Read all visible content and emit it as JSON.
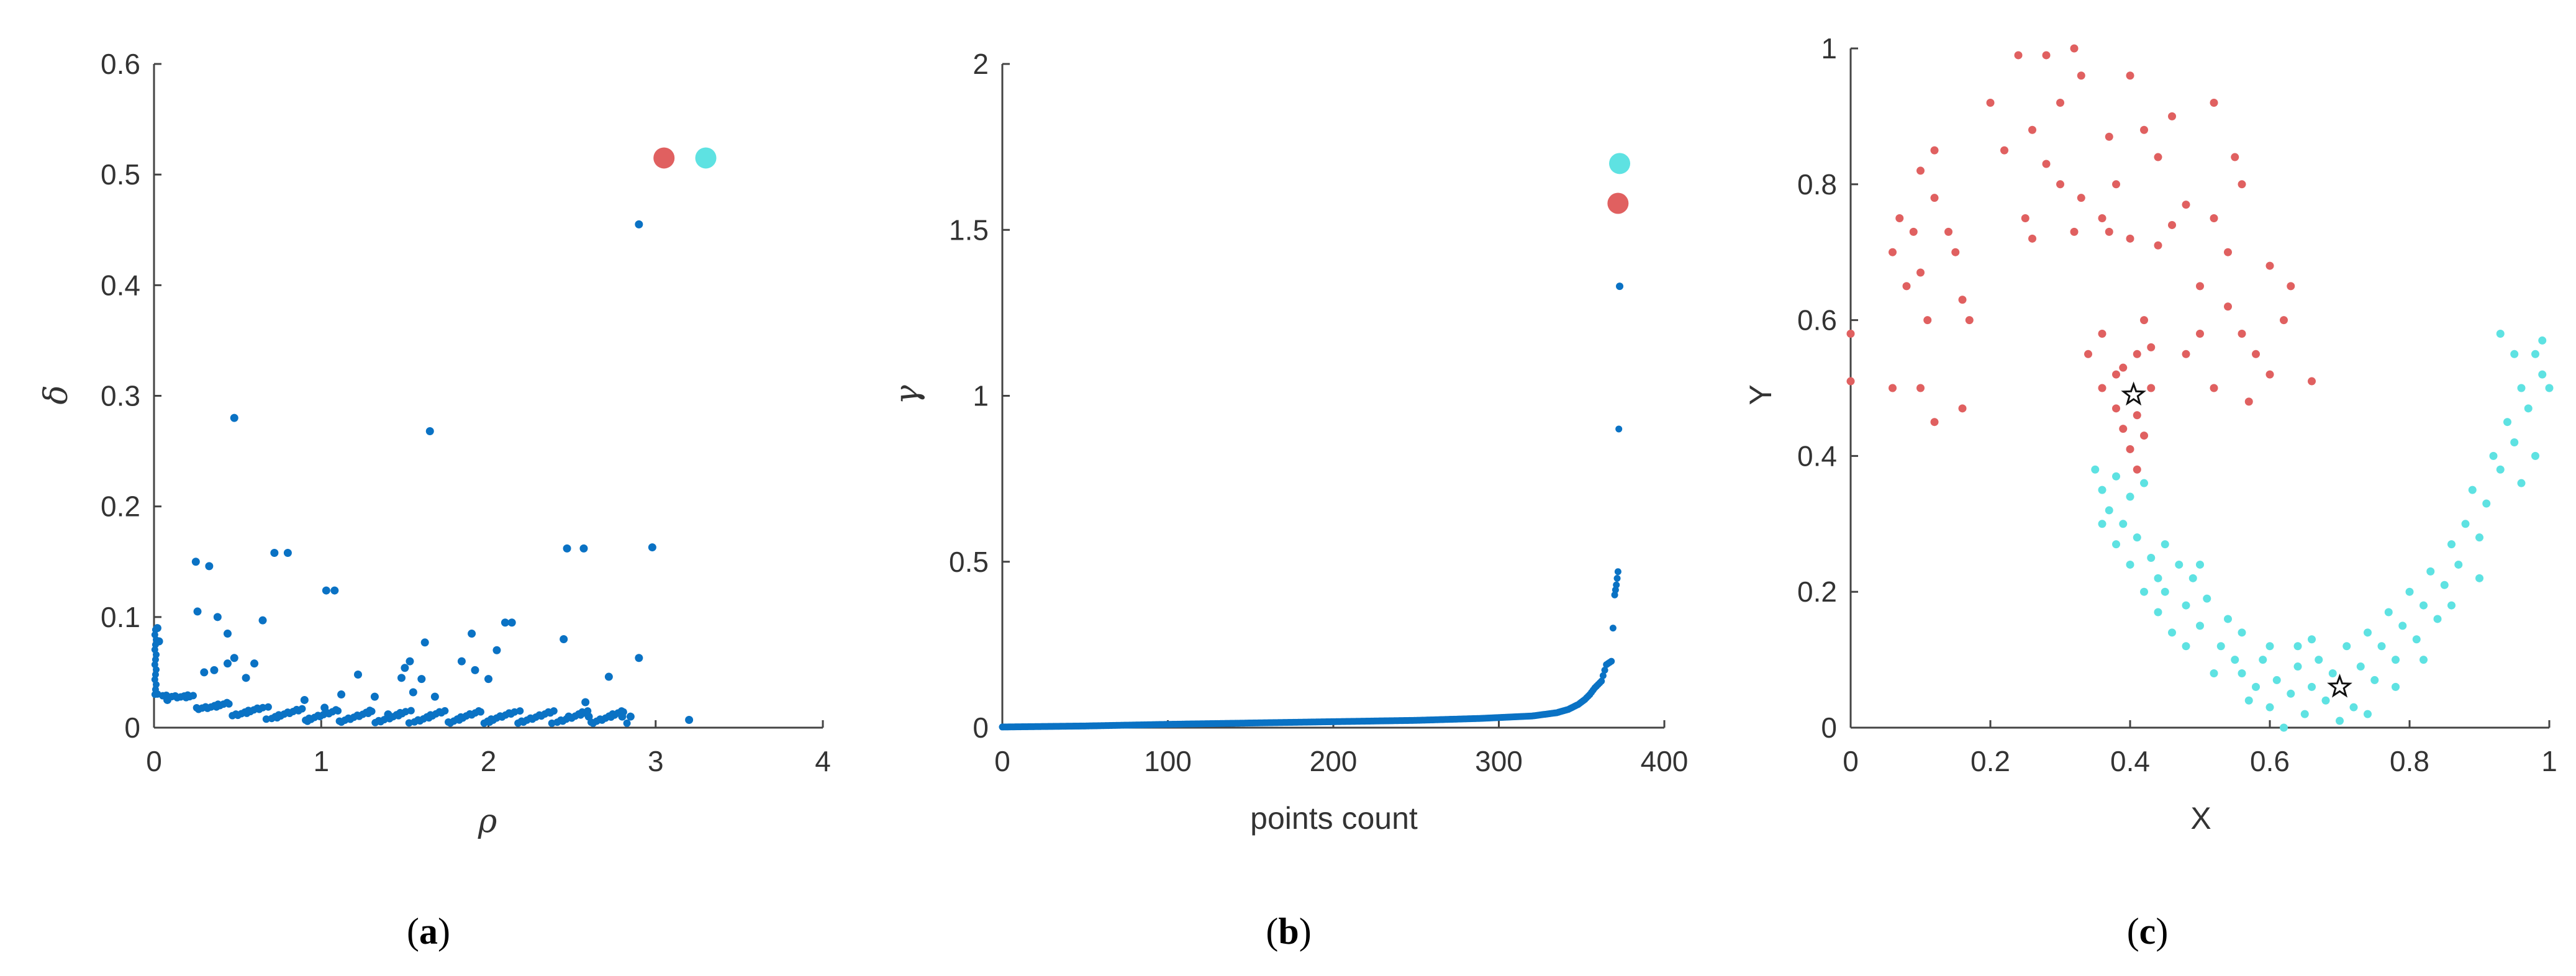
{
  "colors": {
    "blue": "#0a72c4",
    "red": "#e06060",
    "cyan": "#5ee2e2",
    "axis": "#444444"
  },
  "chart_data": [
    {
      "type": "scatter",
      "caption_open": "(",
      "caption_letter": "a",
      "caption_close": ")",
      "xlabel": "ρ",
      "ylabel": "δ",
      "xlim": [
        0,
        4
      ],
      "ylim": [
        0,
        0.6
      ],
      "xticks": [
        "0",
        "1",
        "2",
        "3",
        "4"
      ],
      "yticks": [
        "0",
        "0.1",
        "0.2",
        "0.3",
        "0.4",
        "0.5",
        "0.6"
      ],
      "highlights": [
        {
          "name": "center-red",
          "x": 3.05,
          "y": 0.515,
          "color": "#e06060"
        },
        {
          "name": "center-cyan",
          "x": 3.3,
          "y": 0.515,
          "color": "#5ee2e2"
        }
      ],
      "points": [
        [
          2.9,
          0.455
        ],
        [
          0.48,
          0.28
        ],
        [
          1.65,
          0.268
        ],
        [
          2.98,
          0.163
        ],
        [
          2.47,
          0.162
        ],
        [
          2.57,
          0.162
        ],
        [
          0.72,
          0.158
        ],
        [
          0.8,
          0.158
        ],
        [
          0.25,
          0.15
        ],
        [
          0.33,
          0.146
        ],
        [
          1.03,
          0.124
        ],
        [
          1.08,
          0.124
        ],
        [
          0.26,
          0.105
        ],
        [
          0.38,
          0.1
        ],
        [
          0.65,
          0.097
        ],
        [
          2.1,
          0.095
        ],
        [
          2.14,
          0.095
        ],
        [
          0.02,
          0.09
        ],
        [
          0.03,
          0.078
        ],
        [
          0.44,
          0.085
        ],
        [
          1.9,
          0.085
        ],
        [
          2.05,
          0.07
        ],
        [
          2.45,
          0.08
        ],
        [
          1.62,
          0.077
        ],
        [
          2.9,
          0.063
        ],
        [
          0.48,
          0.063
        ],
        [
          0.44,
          0.058
        ],
        [
          1.53,
          0.06
        ],
        [
          1.84,
          0.06
        ],
        [
          0.6,
          0.058
        ],
        [
          0.3,
          0.05
        ],
        [
          0.36,
          0.052
        ],
        [
          1.5,
          0.054
        ],
        [
          1.92,
          0.052
        ],
        [
          1.22,
          0.048
        ],
        [
          0.55,
          0.045
        ],
        [
          1.48,
          0.045
        ],
        [
          1.6,
          0.044
        ],
        [
          2.0,
          0.044
        ],
        [
          2.72,
          0.046
        ],
        [
          3.2,
          0.007
        ],
        [
          2.58,
          0.023
        ],
        [
          2.85,
          0.01
        ],
        [
          2.48,
          0.01
        ],
        [
          2.6,
          0.01
        ],
        [
          2.8,
          0.01
        ],
        [
          0.08,
          0.025
        ],
        [
          1.12,
          0.03
        ],
        [
          1.32,
          0.028
        ],
        [
          1.55,
          0.032
        ],
        [
          1.68,
          0.028
        ],
        [
          0.9,
          0.025
        ],
        [
          1.02,
          0.018
        ],
        [
          1.4,
          0.012
        ]
      ]
    },
    {
      "type": "line",
      "caption_open": "(",
      "caption_letter": "b",
      "caption_close": ")",
      "xlabel": "points count",
      "ylabel": "γ",
      "xlim": [
        0,
        400
      ],
      "ylim": [
        0,
        2
      ],
      "xticks": [
        "0",
        "100",
        "200",
        "300",
        "400"
      ],
      "yticks": [
        "0",
        "0.5",
        "1",
        "1.5",
        "2"
      ],
      "highlights": [
        {
          "name": "center-cyan",
          "x": 373,
          "y": 1.7,
          "color": "#5ee2e2"
        },
        {
          "name": "center-red",
          "x": 372,
          "y": 1.58,
          "color": "#e06060"
        }
      ],
      "series": [
        {
          "x": [
            0,
            50,
            100,
            150,
            200,
            250,
            290,
            320,
            335,
            342,
            348,
            352,
            355,
            358,
            362,
            365,
            368,
            370,
            371,
            372,
            373
          ],
          "y": [
            0.002,
            0.005,
            0.01,
            0.014,
            0.018,
            0.022,
            0.028,
            0.035,
            0.045,
            0.055,
            0.07,
            0.085,
            0.1,
            0.12,
            0.14,
            0.19,
            0.2,
            0.4,
            0.43,
            0.47,
            1.33
          ]
        }
      ]
    },
    {
      "type": "scatter",
      "caption_open": "(",
      "caption_letter": "c",
      "caption_close": ")",
      "xlabel": "X",
      "ylabel": "Y",
      "xlim": [
        0,
        1
      ],
      "ylim": [
        0,
        1
      ],
      "xticks": [
        "0",
        "0.2",
        "0.4",
        "0.6",
        "0.8",
        "1"
      ],
      "yticks": [
        "0",
        "0.2",
        "0.4",
        "0.6",
        "0.8",
        "1"
      ],
      "stars": [
        {
          "name": "star-red-center",
          "x": 0.405,
          "y": 0.49
        },
        {
          "name": "star-cyan-center",
          "x": 0.7,
          "y": 0.06
        }
      ],
      "series": [
        {
          "name": "",
          "color": "#e06060",
          "points": [
            [
              0.0,
              0.58
            ],
            [
              0.0,
              0.51
            ],
            [
              0.06,
              0.5
            ],
            [
              0.08,
              0.65
            ],
            [
              0.06,
              0.7
            ],
            [
              0.07,
              0.75
            ],
            [
              0.09,
              0.73
            ],
            [
              0.1,
              0.67
            ],
            [
              0.11,
              0.6
            ],
            [
              0.1,
              0.82
            ],
            [
              0.12,
              0.85
            ],
            [
              0.12,
              0.78
            ],
            [
              0.14,
              0.73
            ],
            [
              0.15,
              0.7
            ],
            [
              0.16,
              0.63
            ],
            [
              0.17,
              0.6
            ],
            [
              0.1,
              0.5
            ],
            [
              0.12,
              0.45
            ],
            [
              0.16,
              0.47
            ],
            [
              0.2,
              0.92
            ],
            [
              0.24,
              0.99
            ],
            [
              0.28,
              0.99
            ],
            [
              0.32,
              1.0
            ],
            [
              0.33,
              0.96
            ],
            [
              0.3,
              0.92
            ],
            [
              0.26,
              0.88
            ],
            [
              0.22,
              0.85
            ],
            [
              0.28,
              0.83
            ],
            [
              0.3,
              0.8
            ],
            [
              0.33,
              0.78
            ],
            [
              0.32,
              0.73
            ],
            [
              0.26,
              0.72
            ],
            [
              0.37,
              0.87
            ],
            [
              0.4,
              0.96
            ],
            [
              0.42,
              0.88
            ],
            [
              0.44,
              0.84
            ],
            [
              0.46,
              0.9
            ],
            [
              0.38,
              0.8
            ],
            [
              0.36,
              0.75
            ],
            [
              0.4,
              0.72
            ],
            [
              0.44,
              0.71
            ],
            [
              0.46,
              0.74
            ],
            [
              0.48,
              0.77
            ],
            [
              0.5,
              0.65
            ],
            [
              0.52,
              0.92
            ],
            [
              0.52,
              0.75
            ],
            [
              0.54,
              0.7
            ],
            [
              0.54,
              0.62
            ],
            [
              0.56,
              0.58
            ],
            [
              0.55,
              0.84
            ],
            [
              0.56,
              0.8
            ],
            [
              0.58,
              0.55
            ],
            [
              0.6,
              0.52
            ],
            [
              0.57,
              0.48
            ],
            [
              0.6,
              0.68
            ],
            [
              0.63,
              0.65
            ],
            [
              0.66,
              0.51
            ],
            [
              0.62,
              0.6
            ],
            [
              0.5,
              0.58
            ],
            [
              0.52,
              0.5
            ],
            [
              0.48,
              0.55
            ],
            [
              0.42,
              0.6
            ],
            [
              0.36,
              0.58
            ],
            [
              0.34,
              0.55
            ],
            [
              0.38,
              0.52
            ],
            [
              0.36,
              0.5
            ],
            [
              0.39,
              0.53
            ],
            [
              0.41,
              0.55
            ],
            [
              0.38,
              0.47
            ],
            [
              0.39,
              0.44
            ],
            [
              0.41,
              0.46
            ],
            [
              0.42,
              0.43
            ],
            [
              0.4,
              0.41
            ],
            [
              0.41,
              0.38
            ],
            [
              0.43,
              0.5
            ],
            [
              0.43,
              0.56
            ],
            [
              0.37,
              0.73
            ],
            [
              0.25,
              0.75
            ]
          ]
        },
        {
          "name": "",
          "color": "#5ee2e2",
          "points": [
            [
              0.35,
              0.38
            ],
            [
              0.36,
              0.35
            ],
            [
              0.38,
              0.37
            ],
            [
              0.37,
              0.32
            ],
            [
              0.39,
              0.3
            ],
            [
              0.4,
              0.34
            ],
            [
              0.42,
              0.36
            ],
            [
              0.41,
              0.28
            ],
            [
              0.43,
              0.25
            ],
            [
              0.44,
              0.22
            ],
            [
              0.45,
              0.2
            ],
            [
              0.47,
              0.24
            ],
            [
              0.49,
              0.22
            ],
            [
              0.48,
              0.18
            ],
            [
              0.5,
              0.15
            ],
            [
              0.51,
              0.19
            ],
            [
              0.53,
              0.12
            ],
            [
              0.55,
              0.1
            ],
            [
              0.54,
              0.16
            ],
            [
              0.56,
              0.08
            ],
            [
              0.58,
              0.06
            ],
            [
              0.59,
              0.1
            ],
            [
              0.6,
              0.03
            ],
            [
              0.61,
              0.07
            ],
            [
              0.62,
              0.0
            ],
            [
              0.63,
              0.05
            ],
            [
              0.64,
              0.09
            ],
            [
              0.65,
              0.02
            ],
            [
              0.66,
              0.06
            ],
            [
              0.67,
              0.1
            ],
            [
              0.68,
              0.04
            ],
            [
              0.69,
              0.08
            ],
            [
              0.71,
              0.12
            ],
            [
              0.72,
              0.03
            ],
            [
              0.73,
              0.09
            ],
            [
              0.74,
              0.14
            ],
            [
              0.75,
              0.07
            ],
            [
              0.76,
              0.12
            ],
            [
              0.77,
              0.17
            ],
            [
              0.78,
              0.1
            ],
            [
              0.79,
              0.15
            ],
            [
              0.8,
              0.2
            ],
            [
              0.81,
              0.13
            ],
            [
              0.82,
              0.18
            ],
            [
              0.83,
              0.23
            ],
            [
              0.84,
              0.16
            ],
            [
              0.85,
              0.21
            ],
            [
              0.86,
              0.27
            ],
            [
              0.87,
              0.24
            ],
            [
              0.88,
              0.3
            ],
            [
              0.89,
              0.35
            ],
            [
              0.9,
              0.28
            ],
            [
              0.91,
              0.33
            ],
            [
              0.92,
              0.4
            ],
            [
              0.93,
              0.38
            ],
            [
              0.94,
              0.45
            ],
            [
              0.95,
              0.42
            ],
            [
              0.96,
              0.5
            ],
            [
              0.97,
              0.47
            ],
            [
              0.98,
              0.55
            ],
            [
              0.99,
              0.52
            ],
            [
              0.99,
              0.57
            ],
            [
              1.0,
              0.5
            ],
            [
              0.93,
              0.58
            ],
            [
              0.95,
              0.55
            ],
            [
              0.98,
              0.4
            ],
            [
              0.96,
              0.36
            ],
            [
              0.9,
              0.22
            ],
            [
              0.86,
              0.18
            ],
            [
              0.82,
              0.1
            ],
            [
              0.78,
              0.06
            ],
            [
              0.74,
              0.02
            ],
            [
              0.66,
              0.13
            ],
            [
              0.6,
              0.12
            ],
            [
              0.56,
              0.14
            ],
            [
              0.52,
              0.08
            ],
            [
              0.48,
              0.12
            ],
            [
              0.46,
              0.14
            ],
            [
              0.44,
              0.17
            ],
            [
              0.42,
              0.2
            ],
            [
              0.4,
              0.24
            ],
            [
              0.38,
              0.27
            ],
            [
              0.36,
              0.3
            ],
            [
              0.45,
              0.27
            ],
            [
              0.5,
              0.24
            ],
            [
              0.57,
              0.04
            ],
            [
              0.7,
              0.01
            ],
            [
              0.64,
              0.12
            ]
          ]
        }
      ]
    }
  ]
}
